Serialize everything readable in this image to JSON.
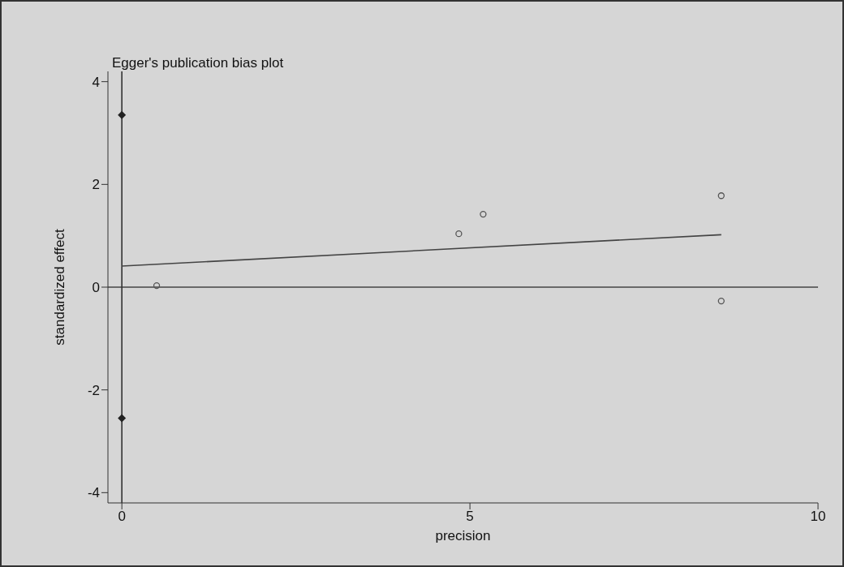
{
  "chart_data": {
    "type": "scatter",
    "title": "Egger's publication bias plot",
    "xlabel": "precision",
    "ylabel": "standardized effect",
    "xlim": [
      -0.2,
      10
    ],
    "xticks": [
      0,
      5,
      10
    ],
    "ylim": [
      -4.2,
      4.2
    ],
    "yticks": [
      -4,
      -2,
      0,
      2,
      4
    ],
    "grid": false,
    "legend": false,
    "marker": "circle",
    "ref_lines": [
      {
        "axis": "y",
        "value": 0,
        "color": "#444444"
      },
      {
        "axis": "x",
        "value": 0,
        "color": "#333333"
      }
    ],
    "series": [
      {
        "color": "#555555",
        "x": [
          0.5,
          4.84,
          5.19,
          8.61,
          8.61
        ],
        "values": [
          0.03,
          1.04,
          1.42,
          1.78,
          -0.27
        ]
      },
      {
        "type": "scatter",
        "color": "#222222",
        "marker": "diamond",
        "x": [
          0,
          0
        ],
        "values": [
          3.35,
          -2.55
        ]
      },
      {
        "type": "line",
        "color": "#444444",
        "marker": "none",
        "x": [
          0,
          8.61
        ],
        "values": [
          0.41,
          1.02
        ]
      }
    ]
  }
}
